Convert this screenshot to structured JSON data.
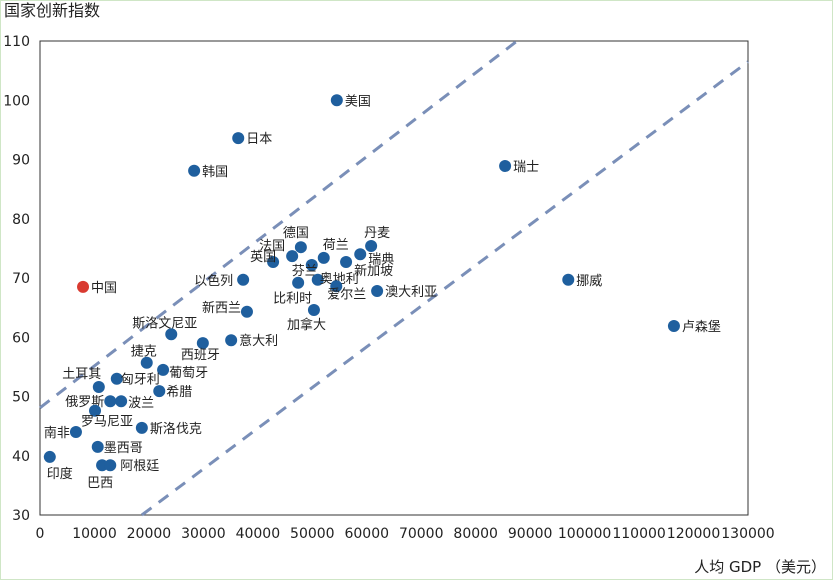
{
  "chart_data": {
    "type": "scatter",
    "title": "",
    "ylabel": "国家创新指数",
    "xlabel": "人均 GDP （美元）",
    "xlim": [
      0,
      130000
    ],
    "ylim": [
      30,
      110
    ],
    "xticks": [
      0,
      10000,
      20000,
      30000,
      40000,
      50000,
      60000,
      70000,
      80000,
      90000,
      100000,
      110000,
      120000,
      130000
    ],
    "yticks": [
      30,
      40,
      50,
      60,
      70,
      80,
      90,
      100,
      110
    ],
    "grid": false,
    "colors": {
      "default": "#1f5f9e",
      "highlight": "#d93a30",
      "trend": "#7a8fb8"
    },
    "points": [
      {
        "name": "中国",
        "x": 7900,
        "y": 68.5,
        "highlight": true
      },
      {
        "name": "美国",
        "x": 54500,
        "y": 100.0
      },
      {
        "name": "日本",
        "x": 36400,
        "y": 93.6
      },
      {
        "name": "韩国",
        "x": 28300,
        "y": 88.1
      },
      {
        "name": "瑞士",
        "x": 85400,
        "y": 88.9
      },
      {
        "name": "挪威",
        "x": 97000,
        "y": 69.7
      },
      {
        "name": "卢森堡",
        "x": 116400,
        "y": 61.9
      },
      {
        "name": "德国",
        "x": 47900,
        "y": 75.2
      },
      {
        "name": "法国",
        "x": 42800,
        "y": 72.7
      },
      {
        "name": "荷兰",
        "x": 52100,
        "y": 73.4
      },
      {
        "name": "丹麦",
        "x": 60800,
        "y": 75.4
      },
      {
        "name": "瑞典",
        "x": 58800,
        "y": 74.0
      },
      {
        "name": "新加坡",
        "x": 56200,
        "y": 72.7
      },
      {
        "name": "英国",
        "x": 46300,
        "y": 73.7
      },
      {
        "name": "芬兰",
        "x": 49900,
        "y": 72.2
      },
      {
        "name": "奥地利",
        "x": 51000,
        "y": 69.7
      },
      {
        "name": "爱尔兰",
        "x": 54400,
        "y": 68.6
      },
      {
        "name": "比利时",
        "x": 47400,
        "y": 69.2
      },
      {
        "name": "澳大利亚",
        "x": 61900,
        "y": 67.8
      },
      {
        "name": "以色列",
        "x": 37300,
        "y": 69.7
      },
      {
        "name": "加拿大",
        "x": 50300,
        "y": 64.6
      },
      {
        "name": "新西兰",
        "x": 38000,
        "y": 64.3
      },
      {
        "name": "意大利",
        "x": 35100,
        "y": 59.5
      },
      {
        "name": "斯洛文尼亚",
        "x": 24100,
        "y": 60.5
      },
      {
        "name": "西班牙",
        "x": 29900,
        "y": 59.0
      },
      {
        "name": "捷克",
        "x": 19600,
        "y": 55.7
      },
      {
        "name": "葡萄牙",
        "x": 22600,
        "y": 54.5
      },
      {
        "name": "匈牙利",
        "x": 14100,
        "y": 53.0
      },
      {
        "name": "土耳其",
        "x": 10800,
        "y": 51.6
      },
      {
        "name": "希腊",
        "x": 21900,
        "y": 50.9
      },
      {
        "name": "俄罗斯",
        "x": 12900,
        "y": 49.2
      },
      {
        "name": "波兰",
        "x": 14900,
        "y": 49.2
      },
      {
        "name": "罗马尼亚",
        "x": 10100,
        "y": 47.6
      },
      {
        "name": "斯洛伐克",
        "x": 18700,
        "y": 44.7
      },
      {
        "name": "南非",
        "x": 6600,
        "y": 44.0
      },
      {
        "name": "墨西哥",
        "x": 10600,
        "y": 41.5
      },
      {
        "name": "印度",
        "x": 1800,
        "y": 39.8
      },
      {
        "name": "巴西",
        "x": 11400,
        "y": 38.4
      },
      {
        "name": "阿根廷",
        "x": 12900,
        "y": 38.4
      }
    ],
    "trend_lines": [
      {
        "name": "upper-bound",
        "x": [
          0,
          87600
        ],
        "y": [
          48.1,
          110
        ]
      },
      {
        "name": "lower-bound",
        "x": [
          18700,
          130000
        ],
        "y": [
          30,
          106.5
        ]
      }
    ]
  }
}
